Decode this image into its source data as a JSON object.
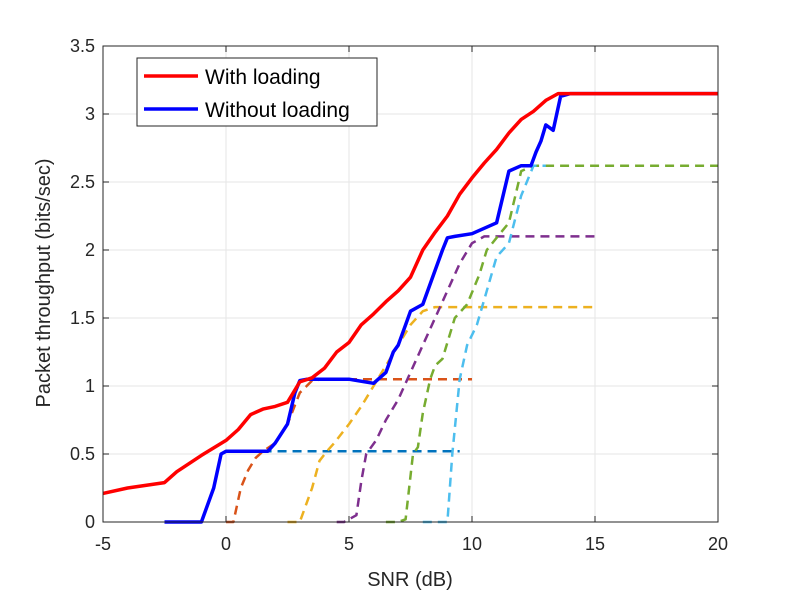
{
  "chart_data": {
    "type": "line",
    "title": "",
    "xlabel": "SNR (dB)",
    "ylabel": "Packet throughput (bits/sec)",
    "xlim": [
      -5,
      20
    ],
    "ylim": [
      0,
      3.5
    ],
    "x_ticks": [
      -5,
      0,
      5,
      10,
      15,
      20
    ],
    "y_ticks": [
      0,
      0.5,
      1,
      1.5,
      2,
      2.5,
      3,
      3.5
    ],
    "x_tick_labels": [
      "-5",
      "0",
      "5",
      "10",
      "15",
      "20"
    ],
    "y_tick_labels": [
      "0",
      "0.5",
      "1",
      "1.5",
      "2",
      "2.5",
      "3",
      "3.5"
    ],
    "grid": true,
    "legend_position": "top-left",
    "series": [
      {
        "name": "With loading",
        "color": "#ff0000",
        "style": "solid",
        "x": [
          -5,
          -4,
          -2.5,
          -2,
          -1,
          0,
          0.5,
          1,
          1.5,
          2,
          2.5,
          3,
          3.5,
          4,
          4.5,
          5,
          5.5,
          6,
          6.5,
          7,
          7.5,
          8,
          8.5,
          9,
          9.5,
          10,
          10.5,
          11,
          11.5,
          12,
          12.5,
          13,
          13.5,
          14,
          20
        ],
        "y": [
          0.21,
          0.25,
          0.29,
          0.37,
          0.49,
          0.6,
          0.68,
          0.79,
          0.83,
          0.85,
          0.88,
          1.03,
          1.06,
          1.13,
          1.25,
          1.32,
          1.45,
          1.53,
          1.62,
          1.7,
          1.8,
          2.0,
          2.13,
          2.25,
          2.41,
          2.53,
          2.64,
          2.74,
          2.86,
          2.96,
          3.02,
          3.1,
          3.15,
          3.15,
          3.15
        ]
      },
      {
        "name": "Without loading",
        "color": "#0000ff",
        "style": "solid",
        "x": [
          -2.5,
          -1,
          -0.5,
          -0.2,
          0,
          1.7,
          2,
          2.5,
          2.8,
          3,
          3.3,
          5,
          6,
          6.5,
          6.8,
          7,
          7.3,
          7.5,
          8,
          8.5,
          8.8,
          9,
          9.3,
          10,
          11,
          11.5,
          12,
          12.4,
          12.6,
          12.8,
          13,
          13.3,
          13.6,
          14,
          20
        ],
        "y": [
          0,
          0,
          0.25,
          0.5,
          0.52,
          0.52,
          0.58,
          0.72,
          0.95,
          1.04,
          1.05,
          1.05,
          1.02,
          1.1,
          1.25,
          1.3,
          1.45,
          1.55,
          1.6,
          1.85,
          2.0,
          2.09,
          2.1,
          2.12,
          2.2,
          2.58,
          2.62,
          2.62,
          2.72,
          2.8,
          2.92,
          2.88,
          3.13,
          3.15,
          3.15
        ]
      },
      {
        "name": "",
        "color": "#0072bd",
        "style": "dashed",
        "x": [
          -2.5,
          -1,
          -0.5,
          -0.2,
          0,
          9.5
        ],
        "y": [
          0,
          0,
          0.25,
          0.5,
          0.52,
          0.52
        ]
      },
      {
        "name": "",
        "color": "#d95319",
        "style": "dashed",
        "x": [
          0,
          0.3,
          0.6,
          0.9,
          1.2,
          1.5,
          2,
          2.5,
          3,
          3.5,
          4,
          4.5,
          5,
          5.5,
          10
        ],
        "y": [
          0,
          0,
          0.25,
          0.38,
          0.47,
          0.52,
          0.58,
          0.72,
          0.95,
          1.04,
          1.05,
          1.05,
          1.05,
          1.05,
          1.05
        ]
      },
      {
        "name": "",
        "color": "#edb120",
        "style": "dashed",
        "x": [
          2.5,
          3,
          3.5,
          3.8,
          4.1,
          4.4,
          5,
          5.5,
          6,
          6.5,
          7,
          7.5,
          8,
          8.5,
          15
        ],
        "y": [
          0,
          0,
          0.25,
          0.45,
          0.52,
          0.58,
          0.72,
          0.85,
          1.0,
          1.15,
          1.3,
          1.45,
          1.55,
          1.58,
          1.58
        ]
      },
      {
        "name": "",
        "color": "#7e2f8e",
        "style": "dashed",
        "x": [
          4.5,
          4.8,
          5.3,
          5.5,
          5.7,
          6.1,
          6.5,
          7,
          7.5,
          8,
          8.5,
          9,
          9.5,
          10,
          10.5,
          15
        ],
        "y": [
          0,
          0,
          0.05,
          0.3,
          0.5,
          0.6,
          0.75,
          0.9,
          1.1,
          1.3,
          1.5,
          1.7,
          1.9,
          2.05,
          2.1,
          2.1
        ]
      },
      {
        "name": "",
        "color": "#77ac30",
        "style": "dashed",
        "x": [
          6.5,
          7,
          7.3,
          7.6,
          7.8,
          8,
          8.3,
          8.5,
          8.8,
          9.3,
          9.8,
          10.3,
          10.6,
          11,
          11.5,
          12,
          12.5,
          20
        ],
        "y": [
          0,
          0,
          0.02,
          0.5,
          0.55,
          0.8,
          1.05,
          1.15,
          1.2,
          1.5,
          1.6,
          1.82,
          2.0,
          2.09,
          2.2,
          2.58,
          2.62,
          2.62
        ]
      },
      {
        "name": "",
        "color": "#4dbeee",
        "style": "dashed",
        "x": [
          8,
          8.6,
          9,
          9.2,
          9.5,
          9.8,
          10.2,
          10.6,
          11,
          11.5,
          12,
          12.5,
          13
        ],
        "y": [
          0,
          0,
          0,
          0.5,
          1.05,
          1.3,
          1.45,
          1.7,
          1.95,
          2.05,
          2.4,
          2.62,
          2.62
        ]
      }
    ]
  }
}
